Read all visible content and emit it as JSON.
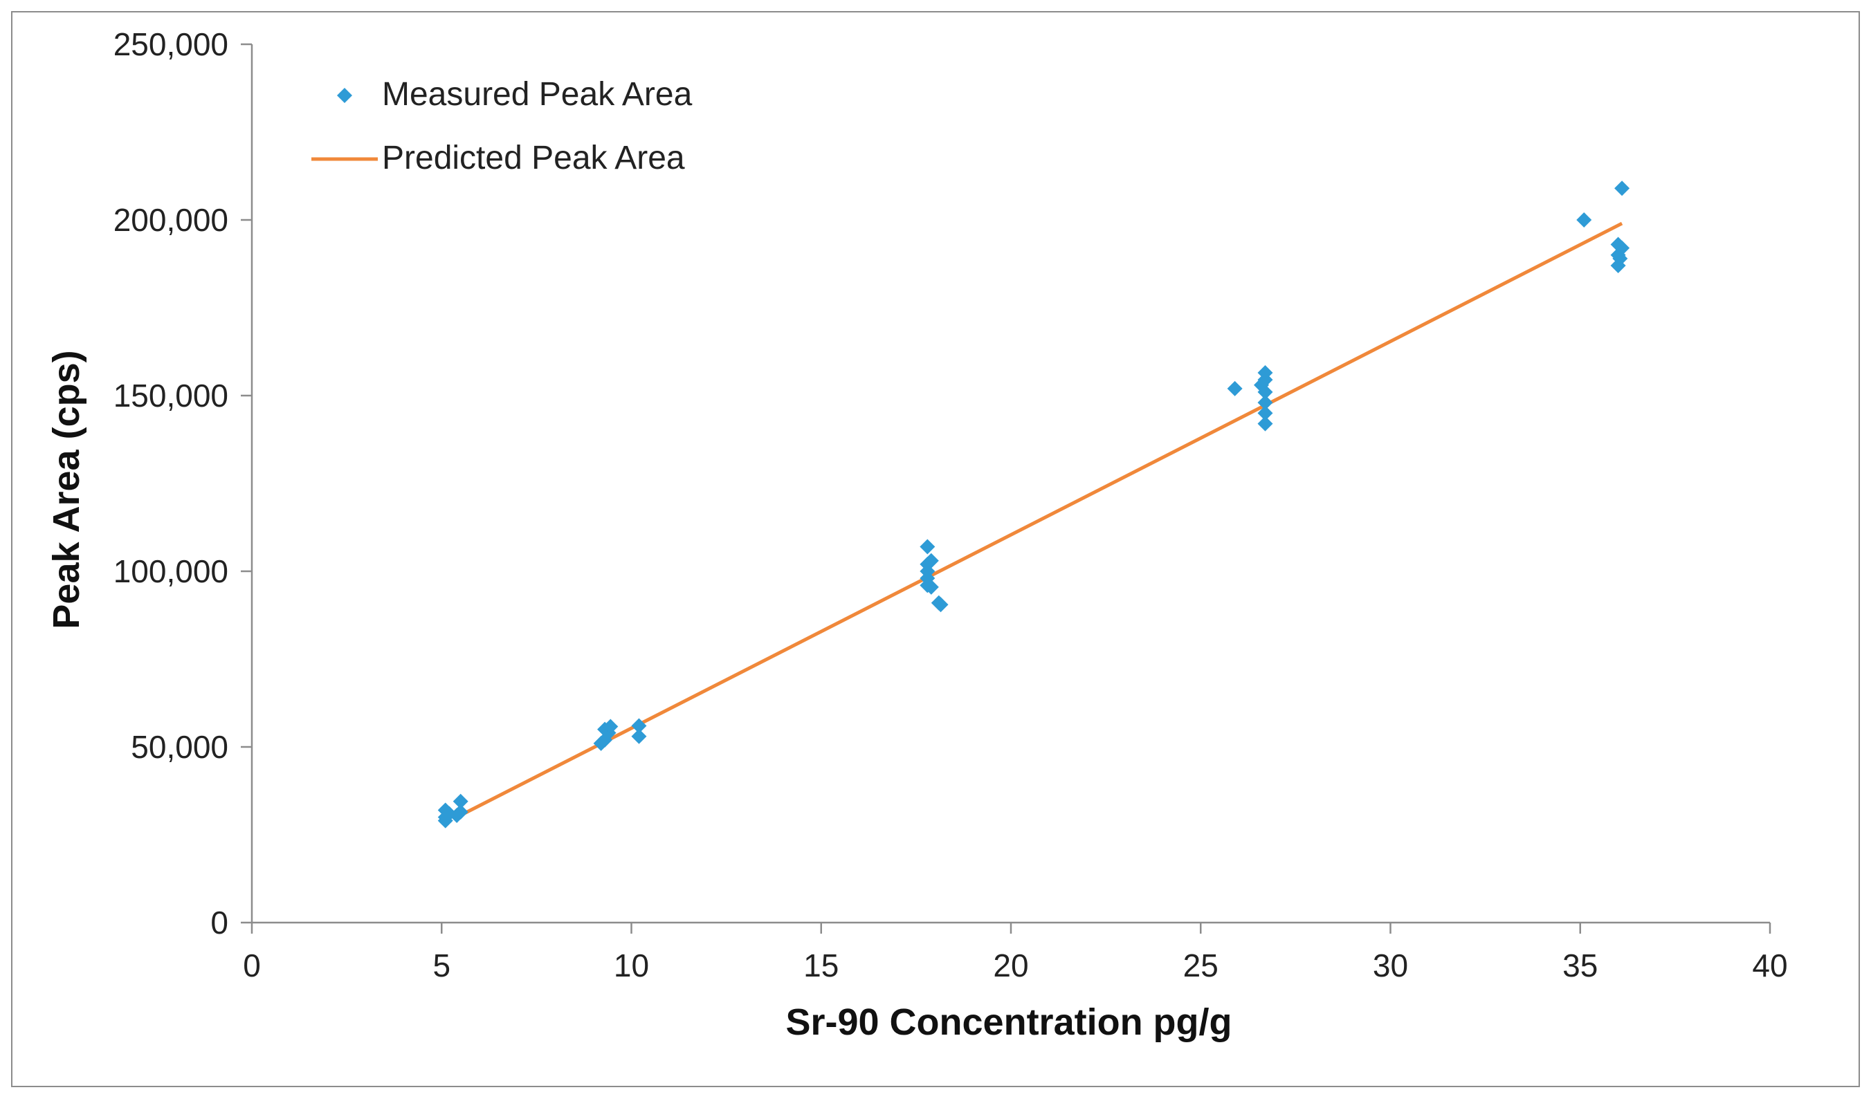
{
  "chart_data": {
    "type": "scatter",
    "title": "",
    "xlabel": "Sr-90 Concentration pg/g",
    "ylabel": "Peak Area (cps)",
    "xlim": [
      0,
      40
    ],
    "ylim": [
      0,
      250000
    ],
    "x_ticks": [
      0,
      5,
      10,
      15,
      20,
      25,
      30,
      35,
      40
    ],
    "x_tick_labels": [
      "0",
      "5",
      "10",
      "15",
      "20",
      "25",
      "30",
      "35",
      "40"
    ],
    "y_ticks": [
      0,
      50000,
      100000,
      150000,
      200000,
      250000
    ],
    "y_tick_labels": [
      "0",
      "50,000",
      "100,000",
      "150,000",
      "200,000",
      "250,000"
    ],
    "grid": false,
    "legend_position": "top-left",
    "colors": {
      "measured": "#2e9bd6",
      "predicted": "#f0883a",
      "axis": "#8c8c8c"
    },
    "series": [
      {
        "name": "Measured Peak Area",
        "type": "scatter",
        "marker": "diamond",
        "points": [
          [
            5.1,
            32000
          ],
          [
            5.1,
            30000
          ],
          [
            5.1,
            29000
          ],
          [
            5.2,
            31000
          ],
          [
            5.4,
            30500
          ],
          [
            5.5,
            34500
          ],
          [
            5.5,
            31500
          ],
          [
            9.2,
            51000
          ],
          [
            9.3,
            55000
          ],
          [
            9.3,
            52000
          ],
          [
            9.4,
            54000
          ],
          [
            9.45,
            55800
          ],
          [
            10.2,
            56000
          ],
          [
            10.2,
            53000
          ],
          [
            17.8,
            107000
          ],
          [
            17.8,
            102000
          ],
          [
            17.9,
            103000
          ],
          [
            17.8,
            100000
          ],
          [
            17.8,
            98000
          ],
          [
            17.8,
            96000
          ],
          [
            17.9,
            95500
          ],
          [
            18.1,
            91000
          ],
          [
            18.15,
            90500
          ],
          [
            25.9,
            152000
          ],
          [
            26.7,
            156500
          ],
          [
            26.7,
            154500
          ],
          [
            26.6,
            153000
          ],
          [
            26.7,
            151000
          ],
          [
            26.7,
            148000
          ],
          [
            26.7,
            145000
          ],
          [
            26.7,
            142000
          ],
          [
            35.1,
            200000
          ],
          [
            36.1,
            209000
          ],
          [
            36.0,
            193000
          ],
          [
            36.1,
            192000
          ],
          [
            36.0,
            190000
          ],
          [
            36.05,
            189000
          ],
          [
            36.0,
            187000
          ]
        ]
      },
      {
        "name": "Predicted Peak Area",
        "type": "line",
        "points": [
          [
            5.4,
            30000
          ],
          [
            36.1,
            199000
          ]
        ]
      }
    ]
  }
}
